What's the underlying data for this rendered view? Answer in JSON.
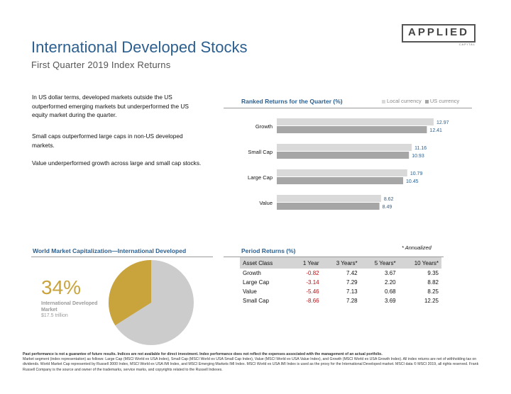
{
  "header": {
    "title": "International Developed Stocks",
    "subtitle": "First Quarter 2019 Index Returns",
    "logo_text": "APPLIED",
    "logo_sub": "CAPITAL"
  },
  "commentary": [
    "In US dollar terms, developed markets outside the US outperformed emerging markets but underperformed the US equity market during the quarter.",
    "Small caps outperformed large caps in non-US developed markets.",
    "Value underperformed growth across large and small cap stocks."
  ],
  "chart_section": {
    "heading": "Ranked Returns for the Quarter (%)",
    "legend_local": "Local currency",
    "legend_us": "US currency",
    "colors": {
      "local": "#d9d9d9",
      "us": "#a6a6a6",
      "label": "#2b5f8f"
    }
  },
  "chart_data": {
    "type": "bar",
    "orientation": "horizontal",
    "title": "Ranked Returns for the Quarter (%)",
    "categories": [
      "Growth",
      "Small Cap",
      "Large Cap",
      "Value"
    ],
    "series": [
      {
        "name": "Local currency",
        "values": [
          12.97,
          11.16,
          10.79,
          8.62
        ]
      },
      {
        "name": "US currency",
        "values": [
          12.41,
          10.93,
          10.45,
          8.49
        ]
      }
    ],
    "xlim": [
      0,
      13.5
    ],
    "legend": "top-right",
    "grid": false
  },
  "pie_section": {
    "heading": "World Market Capitalization—International Developed",
    "percent_label": "34%",
    "percent": 34,
    "label": "International Developed Market",
    "value": "$17.5 trillion",
    "colors": {
      "highlight": "#c9a43c",
      "rest": "#cccccc"
    }
  },
  "table_section": {
    "heading": "Period Returns (%)",
    "note": "* Annualized",
    "columns": [
      "Asset Class",
      "1 Year",
      "3 Years*",
      "5 Years*",
      "10 Years*"
    ],
    "rows": [
      [
        "Growth",
        "-0.82",
        "7.42",
        "3.67",
        "9.35"
      ],
      [
        "Large Cap",
        "-3.14",
        "7.29",
        "2.20",
        "8.82"
      ],
      [
        "Value",
        "-5.46",
        "7.13",
        "0.68",
        "8.25"
      ],
      [
        "Small Cap",
        "-8.66",
        "7.28",
        "3.69",
        "12.25"
      ]
    ]
  },
  "footer": {
    "bold": "Past performance is not a guarantee of future results. Indices are not available for direct investment. Index performance does not reflect the expenses associated with the management of an actual portfolio.",
    "text": "Market segment (index representation) as follows: Large Cap (MSCI World ex USA Index), Small Cap (MSCI World ex USA Small Cap Index), Value (MSCI World ex USA Value Index), and Growth (MSCI World ex USA Growth Index). All index returns are net of withholding tax on dividends. World Market Cap represented by Russell 3000 Index, MSCI World ex USA IMI Index, and MSCI Emerging Markets IMI Index. MSCI World ex USA IMI Index is used as the proxy for the International Developed market. MSCI data © MSCI 2019, all rights reserved. Frank Russell Company is the source and owner of the trademarks, service marks, and copyrights related to the Russell Indexes."
  }
}
